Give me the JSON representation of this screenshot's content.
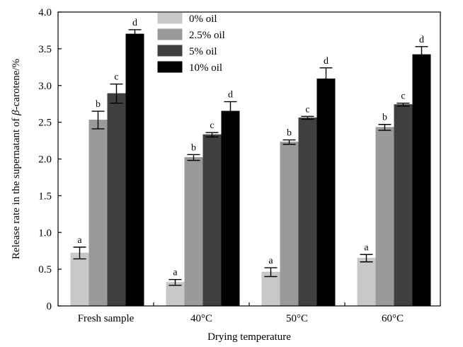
{
  "chart_data": {
    "type": "bar",
    "xlabel": "Drying temperature",
    "ylabel_prefix": "Release rate in the supernatant of ",
    "ylabel_greek": "β",
    "ylabel_suffix": "-carotene/%",
    "ylim": [
      0,
      4.0
    ],
    "y_ticks": [
      "0",
      "0.5",
      "1.0",
      "1.5",
      "2.0",
      "2.5",
      "3.0",
      "3.5",
      "4.0"
    ],
    "grid": false,
    "legend_position": "top-center",
    "categories": [
      "Fresh sample",
      "40°C",
      "50°C",
      "60°C"
    ],
    "series": [
      {
        "name": "0% oil",
        "color": "#c8c8c8",
        "values": [
          0.72,
          0.32,
          0.46,
          0.65
        ],
        "errors": [
          0.08,
          0.04,
          0.06,
          0.05
        ],
        "labels": [
          "a",
          "a",
          "a",
          "a"
        ]
      },
      {
        "name": "2.5% oil",
        "color": "#9a9a9a",
        "values": [
          2.53,
          2.02,
          2.23,
          2.43
        ],
        "errors": [
          0.12,
          0.04,
          0.03,
          0.04
        ],
        "labels": [
          "b",
          "b",
          "b",
          "b"
        ]
      },
      {
        "name": "5% oil",
        "color": "#404040",
        "values": [
          2.89,
          2.33,
          2.56,
          2.74
        ],
        "errors": [
          0.13,
          0.03,
          0.02,
          0.02
        ],
        "labels": [
          "c",
          "c",
          "c",
          "c"
        ]
      },
      {
        "name": "10% oil",
        "color": "#000000",
        "values": [
          3.7,
          2.65,
          3.09,
          3.42
        ],
        "errors": [
          0.06,
          0.13,
          0.15,
          0.11
        ],
        "labels": [
          "d",
          "d",
          "d",
          "d"
        ]
      }
    ]
  }
}
